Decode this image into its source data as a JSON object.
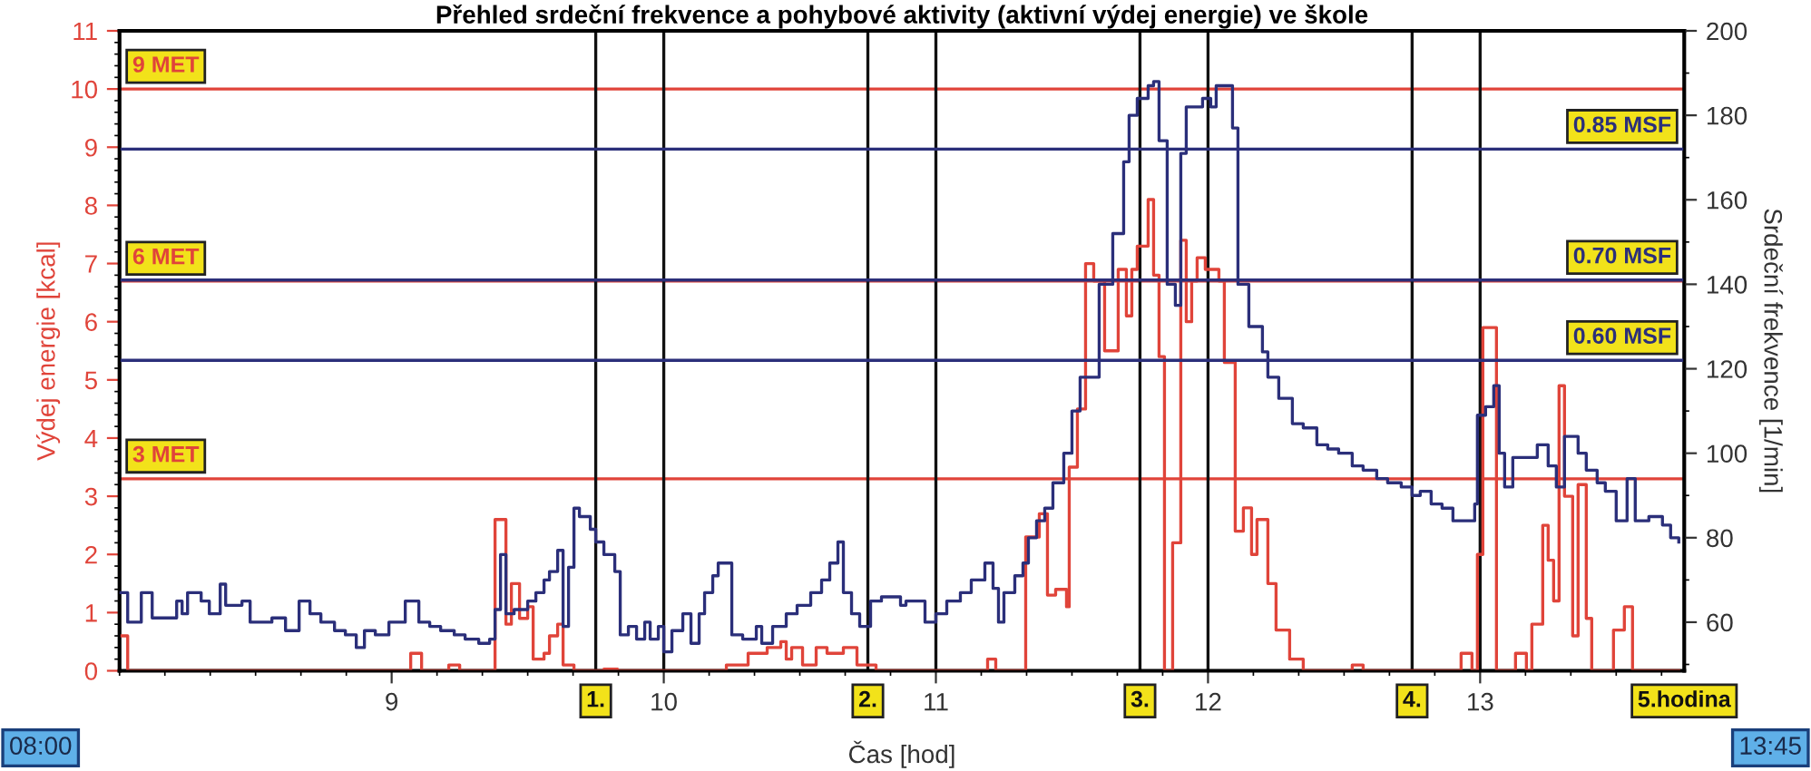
{
  "chart_data": {
    "type": "step",
    "title": "Přehled srdeční frekvence a pohybové aktivity (aktivní výdej energie) ve škole",
    "xlabel": "Čas [hod]",
    "ylabel": "Výdej energie [kcal]",
    "y2label": "Srdeční frekvence [1/min]",
    "xlim": [
      8,
      13.75
    ],
    "xticks": [
      9,
      10,
      11,
      12,
      13
    ],
    "ylim": [
      0,
      11
    ],
    "yticks": [
      0,
      1,
      2,
      3,
      4,
      5,
      6,
      7,
      8,
      9,
      10,
      11
    ],
    "y2lim": [
      48.5,
      200
    ],
    "y2ticks": [
      60,
      80,
      100,
      120,
      140,
      160,
      180,
      200
    ],
    "grid": false,
    "legend": false,
    "marker": "none",
    "line_style": "solid",
    "series": [
      {
        "axis": "y2",
        "color": "#2b2f7a",
        "x": [
          8.0,
          8.03,
          8.08,
          8.12,
          8.21,
          8.23,
          8.25,
          8.3,
          8.33,
          8.37,
          8.39,
          8.45,
          8.48,
          8.52,
          8.56,
          8.61,
          8.66,
          8.7,
          8.74,
          8.79,
          8.83,
          8.87,
          8.9,
          8.94,
          8.99,
          9.03,
          9.05,
          9.1,
          9.14,
          9.18,
          9.23,
          9.27,
          9.32,
          9.36,
          9.38,
          9.4,
          9.42,
          9.45,
          9.5,
          9.53,
          9.56,
          9.58,
          9.61,
          9.63,
          9.65,
          9.67,
          9.69,
          9.73,
          9.75,
          9.78,
          9.82,
          9.84,
          9.87,
          9.9,
          9.93,
          9.95,
          9.98,
          10.0,
          10.03,
          10.07,
          10.1,
          10.13,
          10.15,
          10.18,
          10.2,
          10.23,
          10.25,
          10.29,
          10.34,
          10.36,
          10.4,
          10.45,
          10.49,
          10.54,
          10.58,
          10.61,
          10.64,
          10.66,
          10.69,
          10.72,
          10.76,
          10.8,
          10.87,
          10.89,
          10.96,
          11.0,
          11.04,
          11.09,
          11.13,
          11.18,
          11.21,
          11.23,
          11.25,
          11.29,
          11.32,
          11.34,
          11.37,
          11.4,
          11.43,
          11.47,
          11.5,
          11.53,
          11.6,
          11.65,
          11.69,
          11.71,
          11.74,
          11.78,
          11.8,
          11.82,
          11.85,
          11.88,
          11.9,
          11.92,
          11.95,
          11.98,
          12.01,
          12.03,
          12.06,
          12.09,
          12.11,
          12.15,
          12.2,
          12.22,
          12.26,
          12.31,
          12.35,
          12.4,
          12.44,
          12.48,
          12.53,
          12.57,
          12.62,
          12.66,
          12.71,
          12.75,
          12.78,
          12.82,
          12.86,
          12.9,
          12.95,
          12.98,
          12.99,
          13.02,
          13.05,
          13.07,
          13.09,
          13.12,
          13.17,
          13.21,
          13.25,
          13.28,
          13.31,
          13.36,
          13.39,
          13.43,
          13.46,
          13.5,
          13.54,
          13.57,
          13.62,
          13.67,
          13.7,
          13.73
        ],
        "values": [
          67,
          60,
          67,
          61,
          65,
          62,
          67,
          65,
          62,
          69,
          64,
          65,
          60,
          60,
          61,
          58,
          65,
          62,
          60,
          58,
          57,
          54,
          58,
          57,
          60,
          60,
          65,
          60,
          59,
          58,
          57,
          56,
          55,
          56,
          63,
          76,
          62,
          63,
          65,
          67,
          70,
          72,
          77,
          59,
          73,
          87,
          85,
          82,
          79,
          76,
          72,
          57,
          59,
          56,
          60,
          56,
          59,
          53,
          58,
          62,
          55,
          62,
          67,
          71,
          74,
          74,
          57,
          56,
          59,
          55,
          59,
          62,
          64,
          67,
          70,
          74,
          79,
          67,
          62,
          59,
          65,
          66,
          64,
          65,
          60,
          62,
          65,
          67,
          70,
          74,
          68,
          60,
          67,
          71,
          74,
          80,
          84,
          87,
          93,
          100,
          110,
          118,
          140,
          152,
          169,
          180,
          184,
          187,
          188,
          174,
          140,
          135,
          171,
          182,
          182,
          184,
          182,
          187,
          187,
          177,
          140,
          130,
          124,
          118,
          113,
          107,
          106,
          102,
          101,
          100,
          97,
          96,
          94,
          93,
          92,
          90,
          91,
          88,
          87,
          84,
          84,
          88,
          109,
          111,
          116,
          100,
          92,
          99,
          99,
          102,
          97,
          92,
          104,
          100,
          96,
          93,
          91,
          84,
          94,
          84,
          85,
          83,
          80,
          79
        ]
      },
      {
        "axis": "y",
        "color": "#e0443a",
        "x": [
          8.0,
          8.03,
          9.07,
          9.11,
          9.21,
          9.25,
          9.37,
          9.38,
          9.42,
          9.44,
          9.47,
          9.5,
          9.52,
          9.56,
          9.58,
          9.61,
          9.63,
          9.67,
          9.78,
          9.83,
          10.23,
          10.31,
          10.38,
          10.43,
          10.45,
          10.47,
          10.51,
          10.56,
          10.6,
          10.66,
          10.71,
          10.78,
          11.19,
          11.22,
          11.33,
          11.38,
          11.41,
          11.44,
          11.48,
          11.49,
          11.52,
          11.55,
          11.58,
          11.62,
          11.67,
          11.7,
          11.72,
          11.74,
          11.78,
          11.8,
          11.82,
          11.84,
          11.87,
          11.9,
          11.92,
          11.94,
          11.96,
          11.99,
          12.01,
          12.04,
          12.06,
          12.1,
          12.13,
          12.16,
          12.18,
          12.22,
          12.25,
          12.3,
          12.35,
          12.53,
          12.57,
          12.93,
          12.97,
          12.99,
          13.01,
          13.06,
          13.13,
          13.17,
          13.19,
          13.23,
          13.25,
          13.27,
          13.29,
          13.31,
          13.34,
          13.36,
          13.39,
          13.41,
          13.49,
          13.53,
          13.56,
          13.73
        ],
        "values": [
          0.6,
          0,
          0.3,
          0,
          0.1,
          0,
          0,
          2.6,
          0.8,
          1.5,
          0.9,
          1.1,
          0.2,
          0.3,
          0.6,
          0.8,
          0.1,
          0,
          0.03,
          0,
          0.1,
          0.3,
          0.4,
          0.5,
          0.2,
          0.4,
          0.1,
          0.4,
          0.3,
          0.4,
          0.1,
          0,
          0.2,
          0,
          2.3,
          2.7,
          1.3,
          1.4,
          1.1,
          3.5,
          4.5,
          7.0,
          6.7,
          5.5,
          6.9,
          6.1,
          6.9,
          7.3,
          8.1,
          6.8,
          5.4,
          0,
          2.2,
          7.4,
          6.0,
          6.7,
          7.1,
          6.9,
          6.9,
          6.7,
          5.3,
          2.4,
          2.8,
          2.0,
          2.6,
          1.5,
          0.7,
          0.2,
          0,
          0.1,
          0,
          0.3,
          0,
          2.0,
          5.9,
          0,
          0.3,
          0,
          0.8,
          2.5,
          1.9,
          1.2,
          4.9,
          3.0,
          0.6,
          3.2,
          0.9,
          0,
          0.7,
          1.1,
          0,
          0
        ]
      }
    ],
    "ref_lines": [
      {
        "axis": "y",
        "value": 10.0,
        "label": "9 MET",
        "color": "#e0443a"
      },
      {
        "axis": "y",
        "value": 6.7,
        "label": "6 MET",
        "color": "#e0443a"
      },
      {
        "axis": "y",
        "value": 3.3,
        "label": "3 MET",
        "color": "#e0443a"
      },
      {
        "axis": "y2",
        "value": 172,
        "label": "0.85 MSF",
        "color": "#2b2f7a"
      },
      {
        "axis": "y2",
        "value": 141,
        "label": "0.70 MSF",
        "color": "#2b2f7a"
      },
      {
        "axis": "y2",
        "value": 122,
        "label": "0.60 MSF",
        "color": "#2b2f7a"
      },
      {
        "axis": "x",
        "value": 9.75,
        "color": "#111111"
      },
      {
        "axis": "x",
        "value": 10,
        "color": "#111111"
      },
      {
        "axis": "x",
        "value": 10.75,
        "color": "#111111"
      },
      {
        "axis": "x",
        "value": 11,
        "color": "#111111"
      },
      {
        "axis": "x",
        "value": 11.75,
        "color": "#111111"
      },
      {
        "axis": "x",
        "value": 12,
        "color": "#111111"
      },
      {
        "axis": "x",
        "value": 12.75,
        "color": "#111111"
      },
      {
        "axis": "x",
        "value": 13,
        "color": "#111111"
      }
    ],
    "annotations": [
      "08:00",
      "13:45",
      {
        "text": "1.",
        "x": 9.75,
        "y": 0
      },
      {
        "text": "2.",
        "x": 10.75,
        "y": 0
      },
      {
        "text": "3.",
        "x": 11.75,
        "y": 0
      },
      {
        "text": "4.",
        "x": 12.75,
        "y": 0
      },
      {
        "text": "5.hodina",
        "x": 13.75,
        "y": 0
      }
    ]
  }
}
